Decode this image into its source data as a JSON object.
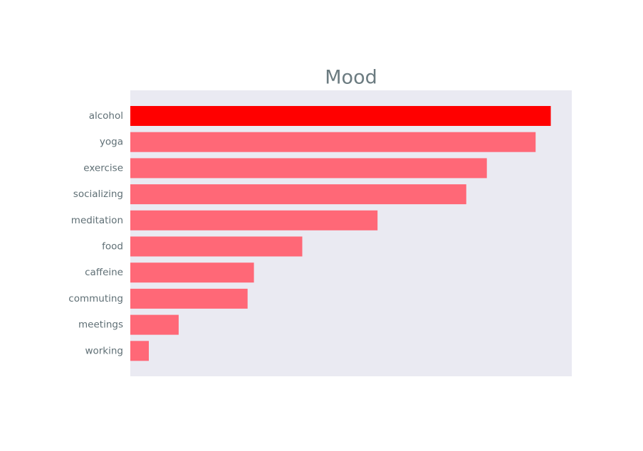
{
  "chart_data": {
    "type": "bar",
    "orientation": "horizontal",
    "title": "Mood",
    "xlabel": "",
    "ylabel": "",
    "categories": [
      "alcohol",
      "yoga",
      "exercise",
      "socializing",
      "meditation",
      "food",
      "caffeine",
      "commuting",
      "meetings",
      "working"
    ],
    "values": [
      100,
      96.4,
      84.8,
      79.9,
      58.8,
      40.9,
      29.4,
      27.9,
      11.5,
      4.4
    ],
    "highlight_index": 0,
    "xlim": [
      0,
      105
    ],
    "show_x_ticks": false,
    "grid": false,
    "colors": {
      "bar": "#ff6877",
      "highlight": "#ff0000",
      "plot_background": "#eaeaf2",
      "title": "#6b7b80",
      "tick_label": "#5f6f75"
    }
  }
}
